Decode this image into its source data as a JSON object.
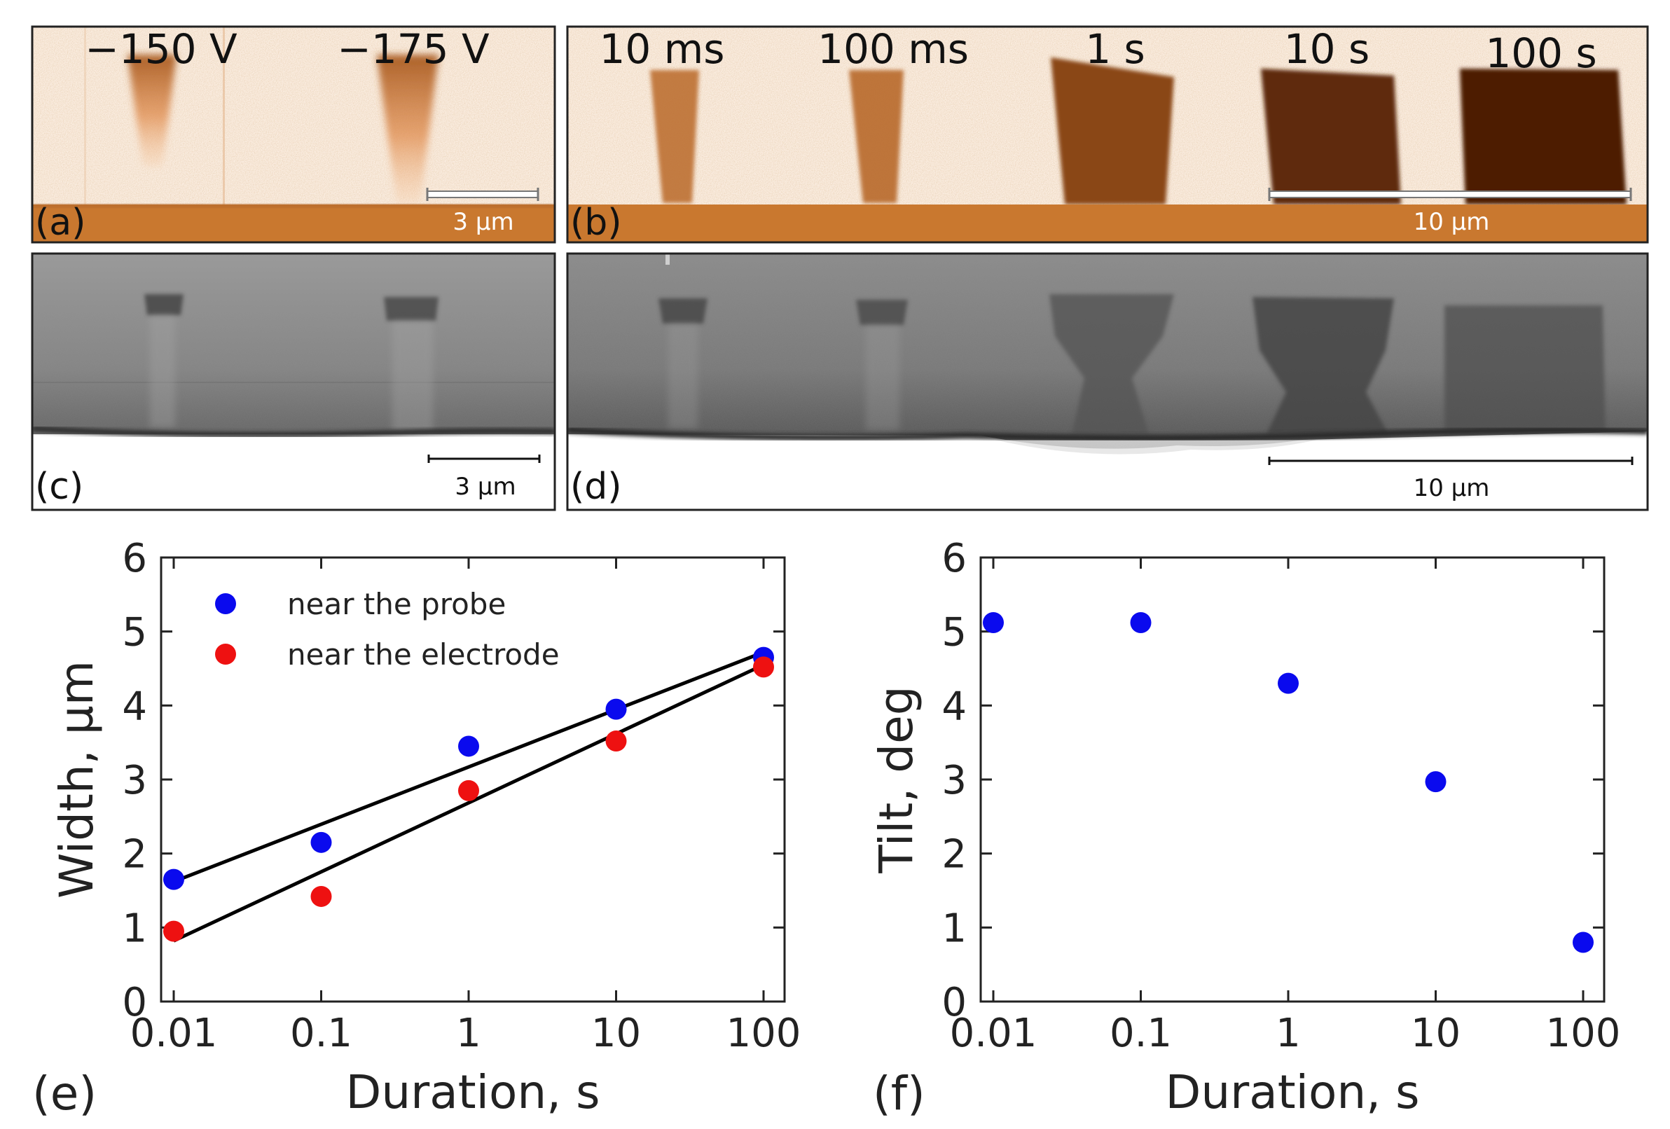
{
  "panels": {
    "a": {
      "label": "(a)",
      "voltages": [
        "−150 V",
        "−175 V"
      ],
      "scale_bar": "3 µm"
    },
    "b": {
      "label": "(b)",
      "durations": [
        "10 ms",
        "100 ms",
        "1 s",
        "10 s",
        "100 s"
      ],
      "scale_bar": "10 µm"
    },
    "c": {
      "label": "(c)",
      "scale_bar": "3 µm"
    },
    "d": {
      "label": "(d)",
      "scale_bar": "10 µm"
    },
    "e": {
      "label": "(e)"
    },
    "f": {
      "label": "(f)"
    }
  },
  "colors": {
    "probe": "#0a0aee",
    "electrode": "#ee1111",
    "fit": "#000000",
    "orange_bg": "#fbeee2",
    "orange_dark": "#c9782f",
    "domain_dark": "#4d1e06"
  },
  "chart_data": [
    {
      "panel": "e",
      "type": "scatter",
      "xscale": "log",
      "x": [
        0.01,
        0.1,
        1,
        10,
        100
      ],
      "xticks": [
        "0.01",
        "0.1",
        "1",
        "10",
        "100"
      ],
      "yticks": [
        "0",
        "1",
        "2",
        "3",
        "4",
        "5",
        "6"
      ],
      "xlabel": "Duration, s",
      "ylabel": "Width, µm",
      "xlim": [
        0.01,
        100
      ],
      "ylim": [
        0,
        6
      ],
      "legend_position": "top-left",
      "series": [
        {
          "name": "near the probe",
          "color": "#0a0aee",
          "values": [
            1.65,
            2.15,
            3.45,
            3.95,
            4.65
          ],
          "fit_line": {
            "x": [
              0.01,
              100
            ],
            "y": [
              1.62,
              4.72
            ]
          }
        },
        {
          "name": "near the electrode",
          "color": "#ee1111",
          "values": [
            0.95,
            1.42,
            2.85,
            3.52,
            4.52
          ],
          "fit_line": {
            "x": [
              0.01,
              100
            ],
            "y": [
              0.82,
              4.55
            ]
          }
        }
      ]
    },
    {
      "panel": "f",
      "type": "scatter",
      "xscale": "log",
      "x": [
        0.01,
        0.1,
        1,
        10,
        100
      ],
      "xticks": [
        "0.01",
        "0.1",
        "1",
        "10",
        "100"
      ],
      "yticks": [
        "0",
        "1",
        "2",
        "3",
        "4",
        "5",
        "6"
      ],
      "xlabel": "Duration, s",
      "ylabel": "Tilt, deg",
      "xlim": [
        0.01,
        100
      ],
      "ylim": [
        0,
        6
      ],
      "series": [
        {
          "name": "tilt",
          "color": "#0a0aee",
          "values": [
            5.12,
            5.12,
            4.3,
            2.97,
            0.8
          ]
        }
      ]
    }
  ]
}
